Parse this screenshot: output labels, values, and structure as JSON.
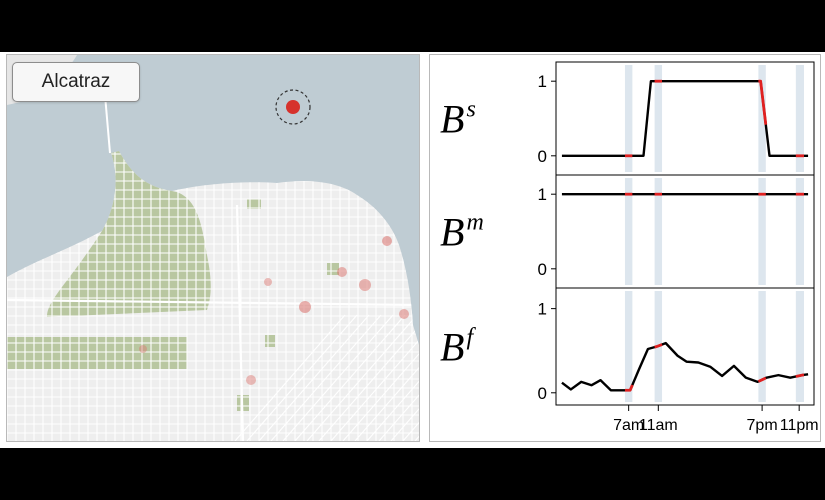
{
  "map": {
    "label": "Alcatraz",
    "colors": {
      "water": "#bfccd3",
      "land": "#eeeeee",
      "park": "#b9c7a1",
      "street": "#ffffff",
      "hotspot": "#d9706a",
      "target": "#d6322c"
    }
  },
  "chart_data": [
    {
      "type": "line",
      "title": "B^s",
      "row_label": {
        "base": "B",
        "sup": "s"
      },
      "yticks": [
        0,
        1
      ],
      "ylim": [
        -0.15,
        1.15
      ],
      "x": [
        0,
        1.5,
        4,
        5,
        5.5,
        6,
        11,
        12,
        12.6,
        13.4,
        14,
        14.6,
        16,
        16.6
      ],
      "values": [
        0,
        0,
        0,
        0,
        0,
        1,
        1,
        1,
        1,
        1,
        0,
        0,
        0,
        0
      ],
      "highlight_x": [
        [
          4,
          5
        ],
        [
          6,
          7
        ],
        [
          13,
          14
        ],
        [
          15.5,
          16.6
        ]
      ]
    },
    {
      "type": "line",
      "title": "B^m",
      "row_label": {
        "base": "B",
        "sup": "m"
      },
      "yticks": [
        0,
        1
      ],
      "ylim": [
        -0.15,
        1.15
      ],
      "x": [
        0,
        16.6
      ],
      "values": [
        1,
        1
      ],
      "highlight_x": [
        [
          4,
          5
        ],
        [
          6,
          7
        ],
        [
          13,
          14
        ],
        [
          15.5,
          16.6
        ]
      ]
    },
    {
      "type": "line",
      "title": "B^f",
      "row_label": {
        "base": "B",
        "sup": "f"
      },
      "yticks": [
        0,
        1
      ],
      "ylim": [
        -0.05,
        1.15
      ],
      "x": [
        0,
        0.6,
        1.3,
        2.0,
        2.6,
        3.3,
        4.0,
        4.6,
        5.2,
        5.8,
        6.4,
        7.0,
        7.8,
        8.4,
        9.2,
        10.0,
        10.8,
        11.6,
        12.4,
        13.2,
        13.8,
        14.6,
        15.4,
        16.2,
        16.6
      ],
      "values": [
        0.12,
        0.04,
        0.13,
        0.09,
        0.15,
        0.03,
        0.03,
        0.03,
        0.28,
        0.52,
        0.55,
        0.59,
        0.44,
        0.37,
        0.36,
        0.31,
        0.2,
        0.32,
        0.18,
        0.13,
        0.18,
        0.21,
        0.18,
        0.21,
        0.22
      ],
      "highlight_x": [
        [
          4,
          5
        ],
        [
          6,
          7
        ],
        [
          13,
          14
        ],
        [
          15.5,
          16.6
        ]
      ]
    }
  ],
  "xaxis": {
    "range": [
      -0.4,
      17
    ],
    "ticks": [
      {
        "x": 4.5,
        "label": "7am"
      },
      {
        "x": 6.5,
        "label": "11am"
      },
      {
        "x": 13.5,
        "label": "7pm"
      },
      {
        "x": 16,
        "label": "11pm"
      }
    ]
  },
  "colors": {
    "line": "#000000",
    "highlight_line": "#e02020",
    "band": "#dde6ee"
  }
}
